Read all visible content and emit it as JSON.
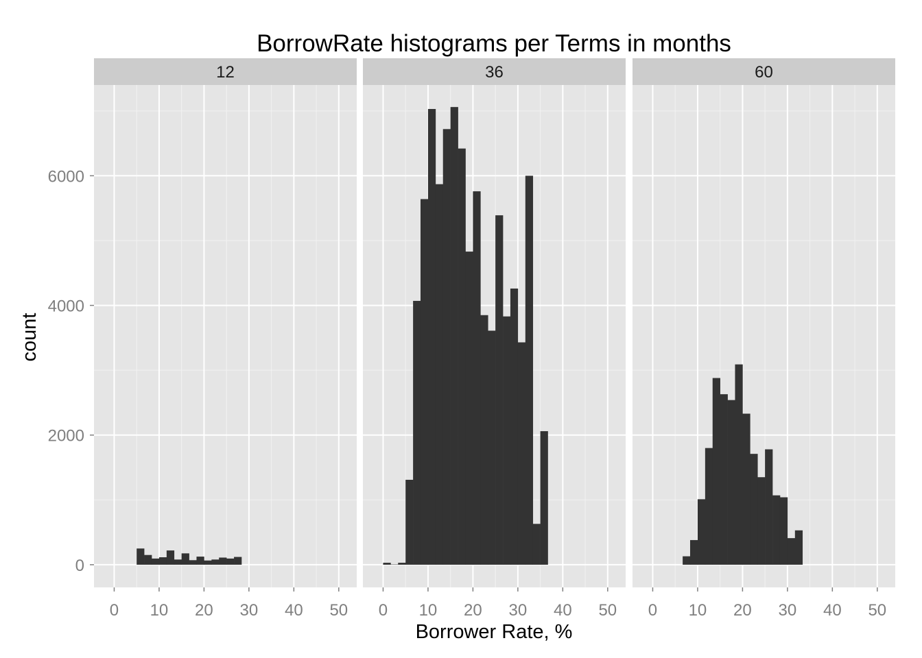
{
  "chart_data": {
    "type": "bar",
    "title": "BorrowRate histograms per Terms in months",
    "xlabel": "Borrower Rate, %",
    "ylabel": "count",
    "xlim": [
      -4.5,
      54
    ],
    "ylim": [
      -350,
      7400
    ],
    "x_ticks": [
      0,
      10,
      20,
      30,
      40,
      50
    ],
    "y_ticks": [
      0,
      2000,
      4000,
      6000
    ],
    "grid": true,
    "bin_width": 1.67,
    "colors": {
      "panel_bg": "#e5e5e5",
      "strip_bg": "#cccccc",
      "grid_major": "#ffffff",
      "grid_minor": "#f2f2f2",
      "bar_fill": "#333333",
      "tick_text": "#7f7f7f"
    },
    "panels": [
      {
        "label": "12",
        "bins": [
          [
            5.0,
            250
          ],
          [
            6.67,
            150
          ],
          [
            8.33,
            95
          ],
          [
            10.0,
            115
          ],
          [
            11.67,
            220
          ],
          [
            13.33,
            80
          ],
          [
            15.0,
            175
          ],
          [
            16.67,
            70
          ],
          [
            18.33,
            125
          ],
          [
            20.0,
            65
          ],
          [
            21.67,
            80
          ],
          [
            23.33,
            110
          ],
          [
            25.0,
            95
          ],
          [
            26.67,
            120
          ]
        ]
      },
      {
        "label": "36",
        "bins": [
          [
            0.0,
            30
          ],
          [
            1.67,
            5
          ],
          [
            3.33,
            30
          ],
          [
            5.0,
            1310
          ],
          [
            6.67,
            4070
          ],
          [
            8.33,
            5640
          ],
          [
            10.0,
            7030
          ],
          [
            11.67,
            5870
          ],
          [
            13.33,
            6720
          ],
          [
            15.0,
            7060
          ],
          [
            16.67,
            6420
          ],
          [
            18.33,
            4830
          ],
          [
            20.0,
            5760
          ],
          [
            21.67,
            3850
          ],
          [
            23.33,
            3610
          ],
          [
            25.0,
            5390
          ],
          [
            26.67,
            3830
          ],
          [
            28.33,
            4260
          ],
          [
            30.0,
            3430
          ],
          [
            31.67,
            6000
          ],
          [
            33.33,
            630
          ],
          [
            35.0,
            2060
          ]
        ]
      },
      {
        "label": "60",
        "bins": [
          [
            6.67,
            130
          ],
          [
            8.33,
            380
          ],
          [
            10.0,
            1010
          ],
          [
            11.67,
            1800
          ],
          [
            13.33,
            2880
          ],
          [
            15.0,
            2630
          ],
          [
            16.67,
            2540
          ],
          [
            18.33,
            3090
          ],
          [
            20.0,
            2330
          ],
          [
            21.67,
            1710
          ],
          [
            23.33,
            1350
          ],
          [
            25.0,
            1780
          ],
          [
            26.67,
            1070
          ],
          [
            28.33,
            1040
          ],
          [
            30.0,
            410
          ],
          [
            31.67,
            530
          ]
        ]
      }
    ]
  }
}
